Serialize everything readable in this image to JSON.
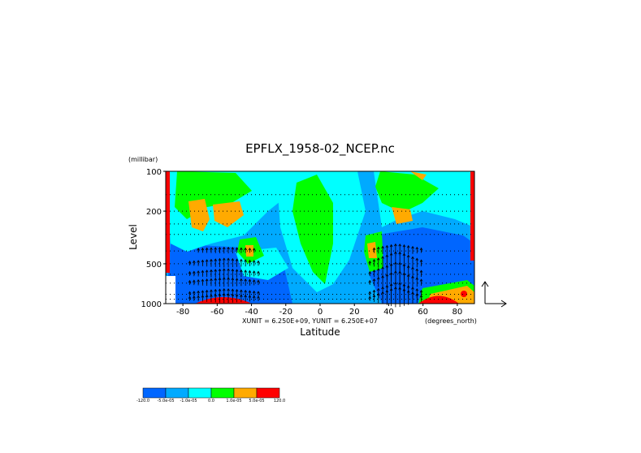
{
  "chart_data": {
    "type": "heatmap",
    "title": "EPFLX_1958-02_NCEP.nc",
    "xlabel": "Latitude",
    "ylabel": "Level",
    "y_unit": "(millibar)",
    "x_unit": "(degrees_north)",
    "vector_units": "XUNIT = 6.250E+09, YUNIT = 6.250E+07",
    "x_ticks": [
      "-80",
      "-60",
      "-40",
      "-20",
      "0",
      "20",
      "40",
      "60",
      "80"
    ],
    "x_tick_values": [
      -80,
      -60,
      -40,
      -20,
      0,
      20,
      40,
      60,
      80
    ],
    "y_ticks": [
      "100",
      "200",
      "500",
      "1000"
    ],
    "y_tick_values": [
      100,
      200,
      500,
      1000
    ],
    "xlim": [
      -90,
      90
    ],
    "ylim": [
      100,
      1000
    ],
    "y_scale": "log",
    "colorbar": {
      "labels": [
        "-120.0",
        "-5.0e-05",
        "-1.0e-05",
        "0.0",
        "1.0e-05",
        "5.0e-05",
        "120.0"
      ],
      "colors": [
        "#0066ff",
        "#00aaff",
        "#00ffff",
        "#00ff00",
        "#ffaa00",
        "#ff0000"
      ]
    },
    "levels_dotted": [
      100,
      150,
      200,
      250,
      300,
      400,
      500,
      600,
      700,
      850,
      925
    ]
  }
}
